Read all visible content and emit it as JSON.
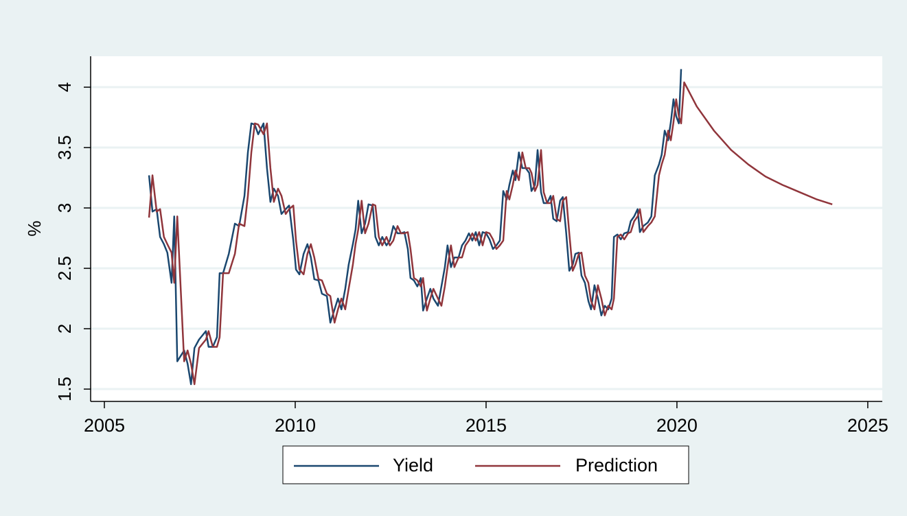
{
  "chart_data": {
    "type": "line",
    "ylabel": "%",
    "xlim": [
      2004.64,
      2025.38
    ],
    "xticks": [
      2005,
      2010,
      2015,
      2020,
      2025
    ],
    "ylim": [
      1.398,
      4.256
    ],
    "yticks": [
      1.5,
      2,
      2.5,
      3,
      3.5,
      4
    ],
    "grid": true,
    "legend": "bottom",
    "series": [
      {
        "name": "Yield",
        "color": "#1a476f",
        "x": [
          2006.17,
          2006.26,
          2006.37,
          2006.46,
          2006.56,
          2006.65,
          2006.76,
          2006.83,
          2006.91,
          2007.09,
          2007.18,
          2007.27,
          2007.36,
          2007.48,
          2007.66,
          2007.73,
          2007.84,
          2007.95,
          2008.02,
          2008.11,
          2008.26,
          2008.42,
          2008.53,
          2008.67,
          2008.76,
          2008.85,
          2008.94,
          2009.03,
          2009.17,
          2009.26,
          2009.35,
          2009.44,
          2009.55,
          2009.64,
          2009.75,
          2009.84,
          2009.95,
          2010.02,
          2010.11,
          2010.22,
          2010.32,
          2010.41,
          2010.5,
          2010.61,
          2010.7,
          2010.83,
          2010.92,
          2011.03,
          2011.12,
          2011.21,
          2011.31,
          2011.4,
          2011.51,
          2011.58,
          2011.65,
          2011.74,
          2011.83,
          2011.92,
          2012.03,
          2012.1,
          2012.19,
          2012.28,
          2012.39,
          2012.48,
          2012.57,
          2012.68,
          2012.77,
          2012.86,
          2012.95,
          2013.02,
          2013.11,
          2013.2,
          2013.29,
          2013.35,
          2013.45,
          2013.54,
          2013.62,
          2013.74,
          2013.83,
          2013.92,
          2013.99,
          2014.08,
          2014.17,
          2014.28,
          2014.37,
          2014.46,
          2014.55,
          2014.64,
          2014.73,
          2014.82,
          2014.91,
          2015.0,
          2015.09,
          2015.18,
          2015.27,
          2015.36,
          2015.45,
          2015.54,
          2015.61,
          2015.7,
          2015.77,
          2015.86,
          2015.95,
          2016.04,
          2016.13,
          2016.19,
          2016.28,
          2016.35,
          2016.44,
          2016.51,
          2016.6,
          2016.69,
          2016.76,
          2016.85,
          2016.94,
          2017.01,
          2017.1,
          2017.18,
          2017.27,
          2017.34,
          2017.43,
          2017.5,
          2017.59,
          2017.68,
          2017.75,
          2017.84,
          2017.93,
          2018.02,
          2018.11,
          2018.2,
          2018.29,
          2018.35,
          2018.44,
          2018.53,
          2018.62,
          2018.72,
          2018.79,
          2018.88,
          2018.97,
          2019.03,
          2019.12,
          2019.24,
          2019.33,
          2019.42,
          2019.53,
          2019.6,
          2019.68,
          2019.77,
          2019.84,
          2019.91,
          2019.98,
          2020.05,
          2020.11
        ],
        "values": [
          3.27,
          2.97,
          2.99,
          2.76,
          2.7,
          2.63,
          2.38,
          2.93,
          1.73,
          1.82,
          1.71,
          1.54,
          1.84,
          1.91,
          1.98,
          1.85,
          1.85,
          1.93,
          2.46,
          2.46,
          2.62,
          2.87,
          2.85,
          3.1,
          3.46,
          3.7,
          3.69,
          3.61,
          3.7,
          3.33,
          3.05,
          3.16,
          3.1,
          2.95,
          2.99,
          3.02,
          2.73,
          2.49,
          2.45,
          2.62,
          2.7,
          2.59,
          2.41,
          2.4,
          2.29,
          2.27,
          2.05,
          2.16,
          2.25,
          2.16,
          2.33,
          2.53,
          2.7,
          2.82,
          3.06,
          2.79,
          2.87,
          3.03,
          3.02,
          2.76,
          2.69,
          2.76,
          2.69,
          2.73,
          2.85,
          2.79,
          2.79,
          2.8,
          2.66,
          2.42,
          2.4,
          2.35,
          2.42,
          2.15,
          2.25,
          2.33,
          2.25,
          2.19,
          2.35,
          2.51,
          2.69,
          2.51,
          2.59,
          2.59,
          2.69,
          2.73,
          2.79,
          2.73,
          2.8,
          2.69,
          2.8,
          2.79,
          2.74,
          2.66,
          2.69,
          2.73,
          3.14,
          3.07,
          3.19,
          3.31,
          3.23,
          3.46,
          3.33,
          3.33,
          3.29,
          3.14,
          3.19,
          3.48,
          3.13,
          3.04,
          3.04,
          3.1,
          2.91,
          2.89,
          3.06,
          3.09,
          2.79,
          2.48,
          2.53,
          2.62,
          2.63,
          2.44,
          2.38,
          2.23,
          2.16,
          2.36,
          2.25,
          2.11,
          2.19,
          2.16,
          2.25,
          2.76,
          2.78,
          2.74,
          2.79,
          2.8,
          2.89,
          2.93,
          2.99,
          2.8,
          2.85,
          2.88,
          2.93,
          3.27,
          3.36,
          3.44,
          3.64,
          3.56,
          3.71,
          3.9,
          3.76,
          3.7,
          4.15
        ]
      },
      {
        "name": "Prediction",
        "color": "#90353b",
        "x": [
          2006.17,
          2006.26,
          2006.37,
          2006.46,
          2006.56,
          2006.65,
          2006.76,
          2006.83,
          2006.91,
          2007.09,
          2007.18,
          2007.27,
          2007.36,
          2007.48,
          2007.66,
          2007.73,
          2007.84,
          2007.95,
          2008.02,
          2008.11,
          2008.26,
          2008.42,
          2008.53,
          2008.67,
          2008.76,
          2008.85,
          2008.94,
          2009.03,
          2009.17,
          2009.26,
          2009.35,
          2009.44,
          2009.55,
          2009.64,
          2009.75,
          2009.84,
          2009.95,
          2010.02,
          2010.11,
          2010.22,
          2010.32,
          2010.41,
          2010.5,
          2010.61,
          2010.7,
          2010.83,
          2010.92,
          2011.03,
          2011.12,
          2011.21,
          2011.31,
          2011.4,
          2011.51,
          2011.58,
          2011.65,
          2011.74,
          2011.83,
          2011.92,
          2012.03,
          2012.1,
          2012.19,
          2012.28,
          2012.39,
          2012.48,
          2012.57,
          2012.68,
          2012.77,
          2012.86,
          2012.95,
          2013.02,
          2013.11,
          2013.2,
          2013.29,
          2013.35,
          2013.45,
          2013.54,
          2013.62,
          2013.74,
          2013.83,
          2013.92,
          2013.99,
          2014.08,
          2014.17,
          2014.28,
          2014.37,
          2014.46,
          2014.55,
          2014.64,
          2014.73,
          2014.82,
          2014.91,
          2015.0,
          2015.09,
          2015.18,
          2015.27,
          2015.36,
          2015.45,
          2015.54,
          2015.61,
          2015.7,
          2015.77,
          2015.86,
          2015.95,
          2016.04,
          2016.13,
          2016.19,
          2016.28,
          2016.35,
          2016.44,
          2016.51,
          2016.6,
          2016.69,
          2016.76,
          2016.85,
          2016.94,
          2017.01,
          2017.1,
          2017.18,
          2017.27,
          2017.34,
          2017.43,
          2017.5,
          2017.59,
          2017.68,
          2017.75,
          2017.84,
          2017.93,
          2018.02,
          2018.11,
          2018.2,
          2018.29,
          2018.35,
          2018.44,
          2018.53,
          2018.62,
          2018.72,
          2018.79,
          2018.88,
          2018.97,
          2019.03,
          2019.12,
          2019.24,
          2019.33,
          2019.42,
          2019.53,
          2019.6,
          2019.68,
          2019.77,
          2019.84,
          2019.91,
          2019.98,
          2020.05,
          2020.11,
          2020.19,
          2020.52,
          2020.97,
          2021.42,
          2021.87,
          2022.32,
          2022.77,
          2023.22,
          2023.67,
          2024.07
        ],
        "values": [
          2.92,
          3.27,
          2.97,
          2.99,
          2.76,
          2.7,
          2.63,
          2.38,
          2.93,
          1.73,
          1.82,
          1.71,
          1.54,
          1.84,
          1.91,
          1.98,
          1.85,
          1.85,
          1.93,
          2.46,
          2.46,
          2.62,
          2.87,
          2.85,
          3.1,
          3.46,
          3.7,
          3.69,
          3.61,
          3.7,
          3.33,
          3.05,
          3.16,
          3.1,
          2.95,
          2.99,
          3.02,
          2.73,
          2.49,
          2.45,
          2.62,
          2.7,
          2.59,
          2.41,
          2.4,
          2.29,
          2.27,
          2.05,
          2.16,
          2.25,
          2.16,
          2.33,
          2.53,
          2.7,
          2.82,
          3.06,
          2.79,
          2.87,
          3.03,
          3.02,
          2.76,
          2.69,
          2.76,
          2.69,
          2.73,
          2.85,
          2.79,
          2.79,
          2.8,
          2.66,
          2.42,
          2.4,
          2.35,
          2.42,
          2.15,
          2.25,
          2.33,
          2.25,
          2.19,
          2.35,
          2.51,
          2.69,
          2.51,
          2.59,
          2.59,
          2.69,
          2.73,
          2.79,
          2.73,
          2.8,
          2.69,
          2.8,
          2.79,
          2.74,
          2.66,
          2.69,
          2.73,
          3.14,
          3.07,
          3.19,
          3.31,
          3.23,
          3.46,
          3.33,
          3.33,
          3.29,
          3.14,
          3.19,
          3.48,
          3.13,
          3.04,
          3.04,
          3.1,
          2.91,
          2.89,
          3.06,
          3.09,
          2.79,
          2.48,
          2.53,
          2.62,
          2.63,
          2.44,
          2.38,
          2.23,
          2.16,
          2.36,
          2.25,
          2.11,
          2.19,
          2.16,
          2.25,
          2.76,
          2.78,
          2.74,
          2.79,
          2.8,
          2.89,
          2.93,
          2.99,
          2.8,
          2.85,
          2.88,
          2.93,
          3.27,
          3.36,
          3.44,
          3.64,
          3.56,
          3.71,
          3.9,
          3.76,
          3.7,
          4.04,
          3.84,
          3.64,
          3.48,
          3.36,
          3.26,
          3.19,
          3.13,
          3.07,
          3.03
        ]
      }
    ]
  }
}
